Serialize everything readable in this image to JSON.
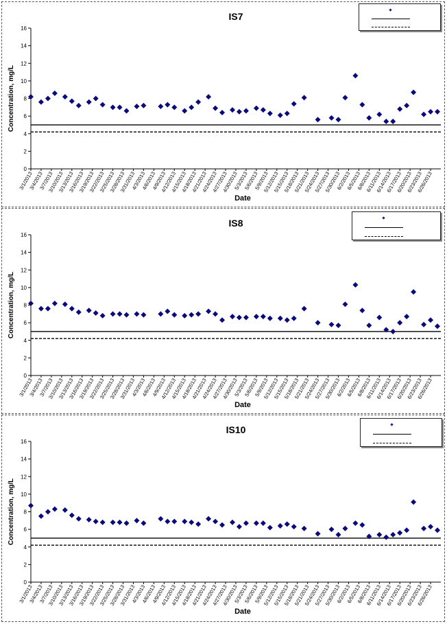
{
  "dates": [
    "3/1/2013",
    "3/4/2013",
    "3/7/2013",
    "3/10/2013",
    "3/13/2013",
    "3/16/2013",
    "3/19/2013",
    "3/22/2013",
    "3/25/2013",
    "3/28/2013",
    "3/31/2013",
    "4/3/2013",
    "4/6/2013",
    "4/9/2013",
    "4/12/2013",
    "4/15/2013",
    "4/18/2013",
    "4/21/2013",
    "4/24/2013",
    "4/27/2013",
    "4/30/2013",
    "5/3/2013",
    "5/6/2013",
    "5/9/2013",
    "5/12/2013",
    "5/15/2013",
    "5/18/2013",
    "5/21/2013",
    "5/24/2013",
    "5/27/2013",
    "5/30/2013",
    "6/2/2013",
    "6/5/2013",
    "6/8/2013",
    "6/11/2013",
    "6/14/2013",
    "6/17/2013",
    "6/20/2013",
    "6/23/2013",
    "6/26/2013"
  ],
  "colors": {
    "marker": "#0a0a7a",
    "line": "#000000"
  },
  "chart_data": [
    {
      "type": "scatter",
      "title": "IS7",
      "xlabel": "Date",
      "ylabel": "Concentration, mg/L",
      "ylim": [
        0,
        16
      ],
      "yticks": [
        "0",
        "2",
        "4",
        "6",
        "8",
        "10",
        "12",
        "14",
        "16"
      ],
      "xlim": [
        "3/1/2013",
        "6/29/2013"
      ],
      "grid": false,
      "legend_position": "top-right",
      "legend_entries": [
        "",
        "",
        ""
      ],
      "reference_lines": [
        {
          "style": "solid",
          "y": 5.0
        },
        {
          "style": "dashed",
          "y": 4.2
        }
      ],
      "points": [
        {
          "x": "3/1/2013",
          "y": 8.2
        },
        {
          "x": "3/4/2013",
          "y": 7.6
        },
        {
          "x": "3/6/2013",
          "y": 8.0
        },
        {
          "x": "3/8/2013",
          "y": 8.6
        },
        {
          "x": "3/11/2013",
          "y": 8.2
        },
        {
          "x": "3/13/2013",
          "y": 7.7
        },
        {
          "x": "3/15/2013",
          "y": 7.2
        },
        {
          "x": "3/18/2013",
          "y": 7.6
        },
        {
          "x": "3/20/2013",
          "y": 8.0
        },
        {
          "x": "3/22/2013",
          "y": 7.3
        },
        {
          "x": "3/25/2013",
          "y": 7.0
        },
        {
          "x": "3/27/2013",
          "y": 7.0
        },
        {
          "x": "3/29/2013",
          "y": 6.6
        },
        {
          "x": "4/1/2013",
          "y": 7.1
        },
        {
          "x": "4/3/2013",
          "y": 7.2
        },
        {
          "x": "4/8/2013",
          "y": 7.1
        },
        {
          "x": "4/10/2013",
          "y": 7.3
        },
        {
          "x": "4/12/2013",
          "y": 7.0
        },
        {
          "x": "4/15/2013",
          "y": 6.6
        },
        {
          "x": "4/17/2013",
          "y": 7.0
        },
        {
          "x": "4/19/2013",
          "y": 7.6
        },
        {
          "x": "4/22/2013",
          "y": 8.2
        },
        {
          "x": "4/24/2013",
          "y": 6.9
        },
        {
          "x": "4/26/2013",
          "y": 6.4
        },
        {
          "x": "4/29/2013",
          "y": 6.7
        },
        {
          "x": "5/1/2013",
          "y": 6.5
        },
        {
          "x": "5/3/2013",
          "y": 6.6
        },
        {
          "x": "5/6/2013",
          "y": 6.9
        },
        {
          "x": "5/8/2013",
          "y": 6.7
        },
        {
          "x": "5/10/2013",
          "y": 6.3
        },
        {
          "x": "5/13/2013",
          "y": 6.1
        },
        {
          "x": "5/15/2013",
          "y": 6.3
        },
        {
          "x": "5/17/2013",
          "y": 7.4
        },
        {
          "x": "5/20/2013",
          "y": 8.1
        },
        {
          "x": "5/24/2013",
          "y": 5.6
        },
        {
          "x": "5/28/2013",
          "y": 5.8
        },
        {
          "x": "5/30/2013",
          "y": 5.6
        },
        {
          "x": "6/1/2013",
          "y": 8.1
        },
        {
          "x": "6/4/2013",
          "y": 10.6
        },
        {
          "x": "6/6/2013",
          "y": 7.3
        },
        {
          "x": "6/8/2013",
          "y": 5.8
        },
        {
          "x": "6/11/2013",
          "y": 6.2
        },
        {
          "x": "6/13/2013",
          "y": 5.4
        },
        {
          "x": "6/15/2013",
          "y": 5.4
        },
        {
          "x": "6/17/2013",
          "y": 6.8
        },
        {
          "x": "6/19/2013",
          "y": 7.2
        },
        {
          "x": "6/21/2013",
          "y": 8.7
        },
        {
          "x": "6/24/2013",
          "y": 6.2
        },
        {
          "x": "6/26/2013",
          "y": 6.5
        },
        {
          "x": "6/28/2013",
          "y": 6.5
        }
      ]
    },
    {
      "type": "scatter",
      "title": "IS8",
      "xlabel": "Date",
      "ylabel": "Concentration, mg/L",
      "ylim": [
        0,
        16
      ],
      "yticks": [
        "0",
        "2",
        "4",
        "6",
        "8",
        "10",
        "12",
        "14",
        "16"
      ],
      "xlim": [
        "3/1/2013",
        "6/29/2013"
      ],
      "grid": false,
      "legend_position": "top-right",
      "legend_entries": [
        "",
        "",
        ""
      ],
      "reference_lines": [
        {
          "style": "solid",
          "y": 5.0
        },
        {
          "style": "dashed",
          "y": 4.2
        }
      ],
      "points": [
        {
          "x": "3/1/2013",
          "y": 8.2
        },
        {
          "x": "3/4/2013",
          "y": 7.6
        },
        {
          "x": "3/6/2013",
          "y": 7.6
        },
        {
          "x": "3/8/2013",
          "y": 8.2
        },
        {
          "x": "3/11/2013",
          "y": 8.1
        },
        {
          "x": "3/13/2013",
          "y": 7.6
        },
        {
          "x": "3/15/2013",
          "y": 7.2
        },
        {
          "x": "3/18/2013",
          "y": 7.4
        },
        {
          "x": "3/20/2013",
          "y": 7.1
        },
        {
          "x": "3/22/2013",
          "y": 6.8
        },
        {
          "x": "3/25/2013",
          "y": 7.0
        },
        {
          "x": "3/27/2013",
          "y": 7.0
        },
        {
          "x": "3/29/2013",
          "y": 6.9
        },
        {
          "x": "4/1/2013",
          "y": 7.0
        },
        {
          "x": "4/3/2013",
          "y": 6.9
        },
        {
          "x": "4/8/2013",
          "y": 7.0
        },
        {
          "x": "4/10/2013",
          "y": 7.3
        },
        {
          "x": "4/12/2013",
          "y": 6.9
        },
        {
          "x": "4/15/2013",
          "y": 6.8
        },
        {
          "x": "4/17/2013",
          "y": 6.9
        },
        {
          "x": "4/19/2013",
          "y": 7.0
        },
        {
          "x": "4/22/2013",
          "y": 7.3
        },
        {
          "x": "4/24/2013",
          "y": 7.0
        },
        {
          "x": "4/26/2013",
          "y": 6.3
        },
        {
          "x": "4/29/2013",
          "y": 6.7
        },
        {
          "x": "5/1/2013",
          "y": 6.6
        },
        {
          "x": "5/3/2013",
          "y": 6.6
        },
        {
          "x": "5/6/2013",
          "y": 6.7
        },
        {
          "x": "5/8/2013",
          "y": 6.7
        },
        {
          "x": "5/10/2013",
          "y": 6.5
        },
        {
          "x": "5/13/2013",
          "y": 6.5
        },
        {
          "x": "5/15/2013",
          "y": 6.3
        },
        {
          "x": "5/17/2013",
          "y": 6.5
        },
        {
          "x": "5/20/2013",
          "y": 7.6
        },
        {
          "x": "5/24/2013",
          "y": 6.0
        },
        {
          "x": "5/28/2013",
          "y": 5.8
        },
        {
          "x": "5/30/2013",
          "y": 5.7
        },
        {
          "x": "6/1/2013",
          "y": 8.1
        },
        {
          "x": "6/4/2013",
          "y": 10.3
        },
        {
          "x": "6/6/2013",
          "y": 7.4
        },
        {
          "x": "6/8/2013",
          "y": 5.7
        },
        {
          "x": "6/11/2013",
          "y": 6.6
        },
        {
          "x": "6/13/2013",
          "y": 5.2
        },
        {
          "x": "6/15/2013",
          "y": 5.0
        },
        {
          "x": "6/17/2013",
          "y": 6.0
        },
        {
          "x": "6/19/2013",
          "y": 6.7
        },
        {
          "x": "6/21/2013",
          "y": 9.5
        },
        {
          "x": "6/24/2013",
          "y": 5.8
        },
        {
          "x": "6/26/2013",
          "y": 6.3
        },
        {
          "x": "6/28/2013",
          "y": 5.6
        }
      ]
    },
    {
      "type": "scatter",
      "title": "IS10",
      "xlabel": "Date",
      "ylabel": "Concentration, mg/L",
      "ylim": [
        0,
        16
      ],
      "yticks": [
        "0",
        "2",
        "4",
        "6",
        "8",
        "10",
        "12",
        "14",
        "16"
      ],
      "xlim": [
        "3/1/2013",
        "6/29/2013"
      ],
      "grid": false,
      "legend_position": "top-right",
      "legend_entries": [
        "",
        "",
        ""
      ],
      "reference_lines": [
        {
          "style": "solid",
          "y": 5.0
        },
        {
          "style": "dashed",
          "y": 4.2
        }
      ],
      "points": [
        {
          "x": "3/1/2013",
          "y": 8.7
        },
        {
          "x": "3/4/2013",
          "y": 7.5
        },
        {
          "x": "3/6/2013",
          "y": 8.0
        },
        {
          "x": "3/8/2013",
          "y": 8.3
        },
        {
          "x": "3/11/2013",
          "y": 8.2
        },
        {
          "x": "3/13/2013",
          "y": 7.6
        },
        {
          "x": "3/15/2013",
          "y": 7.2
        },
        {
          "x": "3/18/2013",
          "y": 7.1
        },
        {
          "x": "3/20/2013",
          "y": 6.9
        },
        {
          "x": "3/22/2013",
          "y": 6.8
        },
        {
          "x": "3/25/2013",
          "y": 6.8
        },
        {
          "x": "3/27/2013",
          "y": 6.8
        },
        {
          "x": "3/29/2013",
          "y": 6.7
        },
        {
          "x": "4/1/2013",
          "y": 7.0
        },
        {
          "x": "4/3/2013",
          "y": 6.7
        },
        {
          "x": "4/8/2013",
          "y": 7.2
        },
        {
          "x": "4/10/2013",
          "y": 6.9
        },
        {
          "x": "4/12/2013",
          "y": 6.9
        },
        {
          "x": "4/15/2013",
          "y": 6.9
        },
        {
          "x": "4/17/2013",
          "y": 6.8
        },
        {
          "x": "4/19/2013",
          "y": 6.6
        },
        {
          "x": "4/22/2013",
          "y": 7.2
        },
        {
          "x": "4/24/2013",
          "y": 6.9
        },
        {
          "x": "4/26/2013",
          "y": 6.5
        },
        {
          "x": "4/29/2013",
          "y": 6.8
        },
        {
          "x": "5/1/2013",
          "y": 6.3
        },
        {
          "x": "5/3/2013",
          "y": 6.7
        },
        {
          "x": "5/6/2013",
          "y": 6.7
        },
        {
          "x": "5/8/2013",
          "y": 6.7
        },
        {
          "x": "5/10/2013",
          "y": 6.2
        },
        {
          "x": "5/13/2013",
          "y": 6.4
        },
        {
          "x": "5/15/2013",
          "y": 6.6
        },
        {
          "x": "5/17/2013",
          "y": 6.3
        },
        {
          "x": "5/20/2013",
          "y": 6.1
        },
        {
          "x": "5/24/2013",
          "y": 5.5
        },
        {
          "x": "5/28/2013",
          "y": 6.0
        },
        {
          "x": "5/30/2013",
          "y": 5.4
        },
        {
          "x": "6/1/2013",
          "y": 6.1
        },
        {
          "x": "6/4/2013",
          "y": 6.7
        },
        {
          "x": "6/6/2013",
          "y": 6.5
        },
        {
          "x": "6/8/2013",
          "y": 5.2
        },
        {
          "x": "6/11/2013",
          "y": 5.4
        },
        {
          "x": "6/13/2013",
          "y": 5.1
        },
        {
          "x": "6/15/2013",
          "y": 5.4
        },
        {
          "x": "6/17/2013",
          "y": 5.6
        },
        {
          "x": "6/19/2013",
          "y": 5.9
        },
        {
          "x": "6/21/2013",
          "y": 9.1
        },
        {
          "x": "6/24/2013",
          "y": 6.1
        },
        {
          "x": "6/26/2013",
          "y": 6.3
        },
        {
          "x": "6/28/2013",
          "y": 5.9
        }
      ]
    }
  ]
}
